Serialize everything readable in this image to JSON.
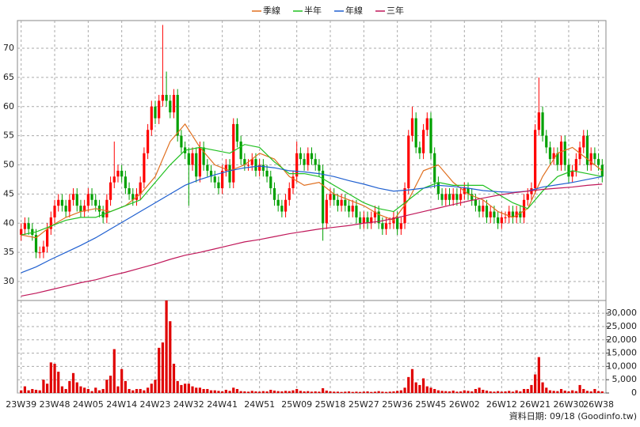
{
  "chart_data": {
    "type": "candlestick",
    "legend": "top",
    "grid": true,
    "up_color": "#ff0000",
    "down_color": "#00a000",
    "footer": "資料日期: 09/18 (Goodinfo.tw)",
    "xlim": [
      -1,
      157
    ],
    "xticks": [
      {
        "value": 0,
        "label": "23W39"
      },
      {
        "value": 9,
        "label": "23W48"
      },
      {
        "value": 18,
        "label": "24W05"
      },
      {
        "value": 27,
        "label": "24W14"
      },
      {
        "value": 36,
        "label": "24W23"
      },
      {
        "value": 45,
        "label": "24W32"
      },
      {
        "value": 54,
        "label": "24W41"
      },
      {
        "value": 64,
        "label": "24W51"
      },
      {
        "value": 74,
        "label": "25W09"
      },
      {
        "value": 83,
        "label": "25W18"
      },
      {
        "value": 92,
        "label": "25W27"
      },
      {
        "value": 101,
        "label": "25W36"
      },
      {
        "value": 110,
        "label": "25W45"
      },
      {
        "value": 119,
        "label": "26W02"
      },
      {
        "value": 129,
        "label": "26W12"
      },
      {
        "value": 138,
        "label": "26W21"
      },
      {
        "value": 147,
        "label": "26W30"
      },
      {
        "value": 155,
        "label": "26W38"
      }
    ],
    "ylim": [
      26.75,
      74.75
    ],
    "yticks": [
      30,
      35,
      40,
      45,
      50,
      55,
      60,
      65,
      70
    ],
    "ohlc": [
      [
        38,
        40,
        37,
        39
      ],
      [
        39,
        41,
        38,
        40
      ],
      [
        40,
        41,
        38,
        39
      ],
      [
        39,
        40,
        37,
        38
      ],
      [
        38,
        39,
        34,
        35
      ],
      [
        35,
        36,
        34,
        35
      ],
      [
        35,
        37,
        34,
        36
      ],
      [
        36,
        40,
        35,
        39
      ],
      [
        39,
        42,
        38,
        41
      ],
      [
        41,
        44,
        40,
        43
      ],
      [
        43,
        45,
        42,
        44
      ],
      [
        44,
        45,
        42,
        43
      ],
      [
        43,
        44,
        41,
        42
      ],
      [
        42,
        45,
        41,
        44
      ],
      [
        44,
        46,
        43,
        45
      ],
      [
        45,
        46,
        42,
        43
      ],
      [
        43,
        44,
        41,
        42
      ],
      [
        42,
        44,
        41,
        43
      ],
      [
        43,
        46,
        42,
        45
      ],
      [
        45,
        46,
        43,
        44
      ],
      [
        44,
        45,
        42,
        43
      ],
      [
        43,
        44,
        41,
        42
      ],
      [
        42,
        43,
        40,
        41
      ],
      [
        41,
        45,
        40,
        44
      ],
      [
        44,
        48,
        43,
        47
      ],
      [
        47,
        54,
        46,
        48
      ],
      [
        48,
        50,
        47,
        49
      ],
      [
        49,
        50,
        47,
        48
      ],
      [
        48,
        49,
        45,
        46
      ],
      [
        46,
        47,
        44,
        45
      ],
      [
        45,
        46,
        43,
        44
      ],
      [
        44,
        46,
        43,
        45
      ],
      [
        45,
        48,
        44,
        47
      ],
      [
        47,
        53,
        46,
        52
      ],
      [
        52,
        57,
        51,
        56
      ],
      [
        56,
        61,
        55,
        60
      ],
      [
        60,
        61,
        57,
        58
      ],
      [
        58,
        62,
        57,
        61
      ],
      [
        61,
        74,
        60,
        62
      ],
      [
        62,
        66,
        60,
        61
      ],
      [
        61,
        62,
        58,
        59
      ],
      [
        59,
        63,
        58,
        62
      ],
      [
        62,
        63,
        54,
        55
      ],
      [
        55,
        56,
        52,
        53
      ],
      [
        53,
        54,
        51,
        52
      ],
      [
        52,
        53,
        43,
        50
      ],
      [
        50,
        53,
        49,
        52
      ],
      [
        52,
        53,
        47,
        48
      ],
      [
        48,
        54,
        47,
        53
      ],
      [
        53,
        54,
        49,
        50
      ],
      [
        50,
        51,
        48,
        49
      ],
      [
        49,
        50,
        47,
        48
      ],
      [
        48,
        49,
        46,
        47
      ],
      [
        47,
        48,
        45,
        46
      ],
      [
        46,
        50,
        45,
        49
      ],
      [
        49,
        51,
        48,
        50
      ],
      [
        50,
        51,
        46,
        47
      ],
      [
        47,
        58,
        46,
        57
      ],
      [
        57,
        58,
        53,
        54
      ],
      [
        54,
        55,
        50,
        51
      ],
      [
        51,
        52,
        49,
        50
      ],
      [
        50,
        51,
        49,
        50
      ],
      [
        50,
        52,
        49,
        51
      ],
      [
        51,
        52,
        48,
        49
      ],
      [
        49,
        51,
        48,
        50
      ],
      [
        50,
        51,
        48,
        49
      ],
      [
        49,
        50,
        47,
        48
      ],
      [
        48,
        49,
        45,
        46
      ],
      [
        46,
        47,
        43,
        44
      ],
      [
        44,
        45,
        42,
        43
      ],
      [
        43,
        44,
        41,
        42
      ],
      [
        42,
        45,
        41,
        44
      ],
      [
        44,
        47,
        43,
        46
      ],
      [
        46,
        49,
        45,
        48
      ],
      [
        48,
        54,
        47,
        52
      ],
      [
        52,
        53,
        50,
        51
      ],
      [
        51,
        52,
        49,
        50
      ],
      [
        50,
        53,
        49,
        52
      ],
      [
        52,
        53,
        50,
        51
      ],
      [
        51,
        52,
        49,
        50
      ],
      [
        50,
        51,
        48,
        49
      ],
      [
        49,
        50,
        37,
        40
      ],
      [
        40,
        45,
        39,
        44
      ],
      [
        44,
        46,
        43,
        45
      ],
      [
        45,
        46,
        43,
        44
      ],
      [
        44,
        45,
        42,
        43
      ],
      [
        43,
        45,
        42,
        44
      ],
      [
        44,
        45,
        42,
        43
      ],
      [
        43,
        44,
        41,
        42
      ],
      [
        42,
        44,
        41,
        43
      ],
      [
        43,
        44,
        40,
        41
      ],
      [
        41,
        42,
        39,
        40
      ],
      [
        40,
        42,
        39,
        41
      ],
      [
        41,
        42,
        39,
        40
      ],
      [
        40,
        42,
        39,
        41
      ],
      [
        41,
        43,
        40,
        42
      ],
      [
        42,
        43,
        39,
        40
      ],
      [
        40,
        41,
        38,
        39
      ],
      [
        39,
        41,
        38,
        40
      ],
      [
        40,
        41,
        39,
        40
      ],
      [
        40,
        42,
        39,
        41
      ],
      [
        41,
        42,
        38,
        39
      ],
      [
        39,
        41,
        38,
        40
      ],
      [
        40,
        47,
        39,
        46
      ],
      [
        46,
        56,
        45,
        55
      ],
      [
        55,
        60,
        54,
        58
      ],
      [
        58,
        59,
        52,
        53
      ],
      [
        53,
        54,
        51,
        52
      ],
      [
        52,
        57,
        51,
        56
      ],
      [
        56,
        59,
        55,
        58
      ],
      [
        58,
        59,
        51,
        52
      ],
      [
        52,
        53,
        46,
        47
      ],
      [
        47,
        48,
        44,
        45
      ],
      [
        45,
        46,
        43,
        44
      ],
      [
        44,
        46,
        43,
        45
      ],
      [
        45,
        46,
        43,
        44
      ],
      [
        44,
        46,
        43,
        45
      ],
      [
        45,
        46,
        43,
        44
      ],
      [
        44,
        46,
        43,
        45
      ],
      [
        45,
        47,
        44,
        46
      ],
      [
        46,
        47,
        44,
        45
      ],
      [
        45,
        46,
        43,
        44
      ],
      [
        44,
        45,
        42,
        43
      ],
      [
        43,
        44,
        41,
        42
      ],
      [
        42,
        44,
        41,
        43
      ],
      [
        43,
        44,
        40,
        41
      ],
      [
        41,
        43,
        40,
        42
      ],
      [
        42,
        43,
        40,
        41
      ],
      [
        41,
        42,
        39,
        40
      ],
      [
        40,
        42,
        39,
        41
      ],
      [
        41,
        42,
        40,
        41
      ],
      [
        41,
        43,
        40,
        42
      ],
      [
        42,
        43,
        40,
        41
      ],
      [
        41,
        43,
        40,
        42
      ],
      [
        42,
        43,
        40,
        41
      ],
      [
        41,
        45,
        40,
        44
      ],
      [
        44,
        46,
        43,
        45
      ],
      [
        45,
        47,
        44,
        46
      ],
      [
        46,
        57,
        45,
        56
      ],
      [
        56,
        65,
        55,
        59
      ],
      [
        59,
        60,
        54,
        55
      ],
      [
        55,
        56,
        52,
        53
      ],
      [
        53,
        54,
        50,
        51
      ],
      [
        51,
        53,
        50,
        52
      ],
      [
        52,
        53,
        49,
        50
      ],
      [
        50,
        55,
        49,
        54
      ],
      [
        54,
        55,
        49,
        50
      ],
      [
        50,
        51,
        47,
        48
      ],
      [
        48,
        50,
        47,
        49
      ],
      [
        49,
        52,
        48,
        51
      ],
      [
        51,
        54,
        50,
        53
      ],
      [
        53,
        56,
        52,
        55
      ],
      [
        55,
        56,
        49,
        50
      ],
      [
        50,
        53,
        49,
        52
      ],
      [
        52,
        53,
        50,
        51
      ],
      [
        51,
        52,
        49,
        50
      ],
      [
        50,
        51,
        47,
        48
      ]
    ],
    "x": [
      0,
      4,
      8,
      12,
      16,
      20,
      24,
      28,
      32,
      36,
      40,
      44,
      48,
      52,
      56,
      60,
      64,
      68,
      72,
      76,
      80,
      84,
      88,
      92,
      96,
      100,
      104,
      108,
      112,
      116,
      120,
      124,
      128,
      132,
      136,
      140,
      144,
      148,
      152,
      156
    ],
    "series": [
      {
        "name": "季線",
        "color": "#e07020",
        "values": [
          38,
          37.5,
          39.5,
          41,
          42,
          42.5,
          42,
          43,
          45,
          48,
          54,
          57,
          53,
          50,
          49,
          50,
          52,
          51,
          48,
          46.5,
          47,
          45,
          44,
          43,
          41.5,
          40.5,
          44,
          49,
          50,
          47,
          45,
          44,
          42,
          41,
          42.5,
          48,
          52,
          53,
          51,
          49
        ]
      },
      {
        "name": "半年",
        "color": "#20c020",
        "values": [
          38,
          38.5,
          39.5,
          40.5,
          41,
          41,
          42,
          43,
          44,
          47,
          50,
          52.5,
          53,
          52.5,
          52,
          53.5,
          53,
          50.5,
          48.5,
          48.5,
          48,
          46.5,
          45,
          43.5,
          42.5,
          42,
          44,
          46,
          47,
          46.5,
          46.5,
          46.5,
          45,
          43.5,
          42.5,
          45.5,
          48,
          49,
          48.5,
          48
        ]
      },
      {
        "name": "年線",
        "color": "#2060d0",
        "values": [
          31.5,
          32.5,
          33.8,
          35,
          36.2,
          37.5,
          39,
          40.5,
          42,
          43.5,
          45,
          46.5,
          47.5,
          48.3,
          49,
          49.5,
          49.8,
          49.5,
          49,
          48.8,
          48.5,
          48,
          47.3,
          46.7,
          46,
          45.5,
          45.7,
          46,
          46.5,
          46.3,
          46,
          45.6,
          45.4,
          45.3,
          45.5,
          46.2,
          46.6,
          47,
          47.5,
          48
        ]
      },
      {
        "name": "三年",
        "color": "#c0185a",
        "values": [
          27.5,
          28,
          28.6,
          29.2,
          29.8,
          30.3,
          31,
          31.6,
          32.3,
          33,
          33.8,
          34.5,
          35,
          35.6,
          36.2,
          36.8,
          37.2,
          37.7,
          38.2,
          38.6,
          39,
          39.3,
          39.6,
          40,
          40.3,
          40.8,
          41.4,
          42,
          42.6,
          43.2,
          43.8,
          44.3,
          44.8,
          45.2,
          45.5,
          45.8,
          46,
          46.2,
          46.5,
          46.7
        ]
      }
    ],
    "volume": {
      "color": "#e00000",
      "ylim": [
        0,
        34800
      ],
      "yticks": [
        0,
        {
          "value": 5000,
          "label": "5,000"
        },
        {
          "value": 10000,
          "label": "10,000"
        },
        {
          "value": 15000,
          "label": "15,000"
        },
        {
          "value": 20000,
          "label": "20,000"
        },
        {
          "value": 25000,
          "label": "25,000"
        },
        {
          "value": 30000,
          "label": "30,000"
        }
      ],
      "values": [
        1000,
        2500,
        1000,
        1500,
        1200,
        1000,
        5000,
        3500,
        11500,
        11000,
        8000,
        2500,
        1500,
        4500,
        7500,
        4000,
        2500,
        2000,
        1500,
        700,
        2000,
        1000,
        1500,
        5000,
        6500,
        16500,
        2500,
        9000,
        4500,
        1500,
        1000,
        1500,
        1500,
        1000,
        2000,
        3500,
        5000,
        17000,
        19000,
        34800,
        27000,
        11000,
        4500,
        3000,
        3500,
        3500,
        2500,
        2000,
        2000,
        1500,
        1500,
        1000,
        1000,
        800,
        600,
        1200,
        800,
        2000,
        1500,
        700,
        600,
        500,
        800,
        600,
        500,
        700,
        600,
        1200,
        900,
        700,
        600,
        800,
        700,
        1000,
        1500,
        800,
        600,
        700,
        500,
        600,
        500,
        1800,
        900,
        600,
        500,
        500,
        400,
        500,
        600,
        400,
        500,
        400,
        500,
        600,
        400,
        500,
        700,
        500,
        400,
        500,
        600,
        800,
        1000,
        2000,
        6000,
        9000,
        4000,
        3000,
        5500,
        2500,
        2000,
        1500,
        1000,
        800,
        700,
        600,
        900,
        500,
        600,
        1000,
        800,
        600,
        1500,
        2000,
        1200,
        900,
        600,
        500,
        700,
        500,
        600,
        800,
        500,
        1000,
        600,
        1500,
        1500,
        3000,
        7000,
        13500,
        4000,
        2000,
        1000,
        800,
        700,
        1500,
        900,
        600,
        1000,
        700,
        3000,
        1500,
        800,
        600,
        1500,
        700,
        600
      ]
    }
  }
}
